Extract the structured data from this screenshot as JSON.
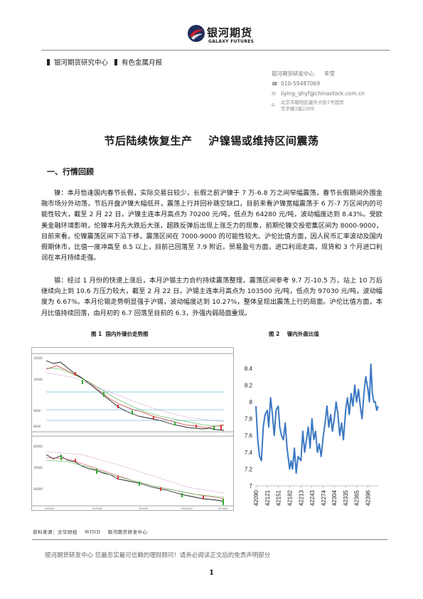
{
  "header": {
    "logo_cn": "银河期货",
    "logo_en": "GALAXY FUTURES",
    "breadcrumb_left": "银河期货研究中心",
    "breadcrumb_right": "有色金属月报"
  },
  "contact": {
    "org": "银河期货研发中心",
    "name": "李莹",
    "phone": "010-59487069",
    "email": "liying_qhyf@chinastock.com.cn",
    "address": "北京市朝阳区建外大街 1 号 楼 5 国 贸写字楼 2 座 2309",
    "address_line1": "北京市朝阳区建外大街1号国贸",
    "address_line2": "写字楼2座2309"
  },
  "title": "节后陆续恢复生产    沪镍锡或维持区间震荡",
  "section1": "一、行情回顾",
  "para1": "镍：本月恰逢国内春节长假，实际交易日较少，长假之前沪镍于 7 万-6.8 万之间窄幅震荡，春节长假期间外围金融市场分外动荡，节后开盘沪镍大幅低开，震荡上行并回补跳空缺口，目前来看沪镍宽幅震荡于 6 万-7 万区间内的可能性较大，截至 2 月 22 日，沪镍主连本月高点为 70200 元/吨，低点为 64280 元/吨，波动幅度达到 8.43%。受欧美金融环境影响，伦镍本月先大跌后大涨，超跌反弹后出现上涨乏力的现象，前期伦镍交投密集区间为 8000-9000，目前来看，伦镍震荡区间下沿下移，震荡区间在 7000-9000 的可能性较大。沪伦比值方面，因人民币汇率波动及国内假期休市，比值一度冲高至 8.5 以上，目前已回落至 7.9 附近。贸易盈亏方面，进口利润走高，现货和 3 个月进口利润在本月持续走强。",
  "para2": "锡：经过 1 月份的快速上涨后，本月沪锡主力合约持续震荡整理，震荡区间参考 9.7 万-10.5 万，站上 10 万后继续向上到 10.6 万压力较大，截至 2 月 22 日，沪锡主连本月高点为 103500 元/吨，低点为 97030 元/吨，波动幅度为 6.67%。本月伦锡走势明显强于沪锡，波动幅度达到 10.27%，整体呈现出震荡上行的局面。沪伦比值方面，本月比值持续回落，由月初的 6.7 回落至目前的 6.3，外强内弱局面重现。",
  "fig1_caption": "图 1  国内外镍价走势图",
  "fig2_caption": "图 2    镍内外盘比值",
  "source": "资料来源：文华财经    WIND    银河期货研发中心",
  "footer": "银河期货研发中心  您最忠实最可信赖的理财顾问！请务必阅读正文后的免责声明部分",
  "page_number": "1",
  "chart_data": {
    "type": "line",
    "title": "",
    "xlabel": "",
    "ylabel": "",
    "ylim": [
      7,
      8.5
    ],
    "yticks": [
      "7",
      "7.2",
      "7.4",
      "7.6",
      "7.8",
      "8",
      "8.2",
      "8.4"
    ],
    "xticks": [
      "42090",
      "42121",
      "42151",
      "42182",
      "42213",
      "42243",
      "42274",
      "42304",
      "42335",
      "42365",
      "42396"
    ],
    "color": "#3c78c3",
    "x": [
      42090,
      42095,
      42100,
      42105,
      42110,
      42115,
      42121,
      42125,
      42130,
      42135,
      42140,
      42145,
      42151,
      42155,
      42160,
      42165,
      42170,
      42175,
      42182,
      42186,
      42190,
      42195,
      42200,
      42205,
      42213,
      42218,
      42223,
      42228,
      42233,
      42238,
      42243,
      42248,
      42253,
      42258,
      42263,
      42268,
      42274,
      42279,
      42284,
      42289,
      42294,
      42299,
      42304,
      42309,
      42314,
      42319,
      42324,
      42329,
      42335,
      42340,
      42345,
      42350,
      42355,
      42360,
      42365,
      42370,
      42375,
      42380,
      42385,
      42390,
      42396,
      42400,
      42404,
      42408,
      42412,
      42416,
      42420,
      42424
    ],
    "values": [
      7.95,
      7.55,
      7.35,
      7.3,
      7.7,
      7.85,
      7.9,
      7.7,
      8.05,
      7.85,
      7.6,
      7.9,
      7.95,
      7.7,
      7.6,
      7.55,
      7.75,
      7.45,
      7.2,
      7.3,
      7.2,
      7.45,
      7.15,
      7.35,
      7.3,
      7.65,
      7.4,
      7.55,
      7.7,
      7.45,
      7.8,
      7.55,
      7.65,
      7.4,
      7.5,
      7.35,
      7.6,
      7.75,
      7.95,
      7.7,
      7.85,
      7.65,
      7.8,
      8.0,
      7.85,
      7.6,
      7.75,
      7.55,
      7.9,
      8.05,
      7.85,
      8.1,
      7.95,
      8.2,
      8.0,
      8.15,
      7.95,
      7.8,
      8.1,
      8.3,
      8.15,
      8.0,
      8.45,
      8.1,
      8.0,
      8.0,
      7.9,
      7.95
    ]
  },
  "chart1": {
    "upper_price_labels": [
      "8000",
      "8500",
      "9000",
      "9500",
      "10000",
      "10500"
    ],
    "lower_price_labels": [
      "60000",
      "65000",
      "70000",
      "75000",
      "80000"
    ],
    "date_labels": [
      "2015/3",
      "2015/6",
      "2015/9",
      "2015/12",
      "2016/2"
    ]
  }
}
